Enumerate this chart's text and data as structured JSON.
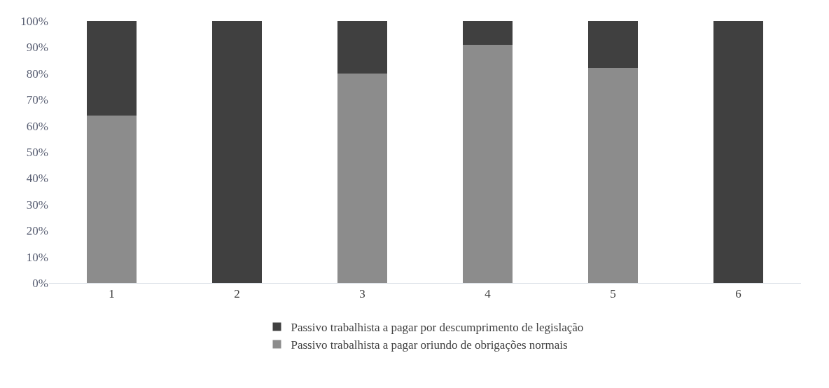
{
  "chart_data": {
    "type": "bar",
    "stacked": true,
    "categories": [
      "1",
      "2",
      "3",
      "4",
      "5",
      "6"
    ],
    "series": [
      {
        "name": "Passivo trabalhista a pagar oriundo de obrigações normais",
        "color": "#8c8c8c",
        "values": [
          64,
          0,
          80,
          91,
          82,
          0
        ]
      },
      {
        "name": "Passivo trabalhista a pagar por descumprimento de legislação",
        "color": "#404040",
        "values": [
          36,
          100,
          20,
          9,
          18,
          100
        ]
      }
    ],
    "ylim": [
      0,
      100
    ],
    "yticks": [
      {
        "value": 0,
        "label": "0%"
      },
      {
        "value": 10,
        "label": "10%"
      },
      {
        "value": 20,
        "label": "20%"
      },
      {
        "value": 30,
        "label": "30%"
      },
      {
        "value": 40,
        "label": "40%"
      },
      {
        "value": 50,
        "label": "50%"
      },
      {
        "value": 60,
        "label": "60%"
      },
      {
        "value": 70,
        "label": "70%"
      },
      {
        "value": 80,
        "label": "80%"
      },
      {
        "value": 90,
        "label": "90%"
      },
      {
        "value": 100,
        "label": "100%"
      }
    ],
    "grid": false,
    "legend": "bottom"
  }
}
